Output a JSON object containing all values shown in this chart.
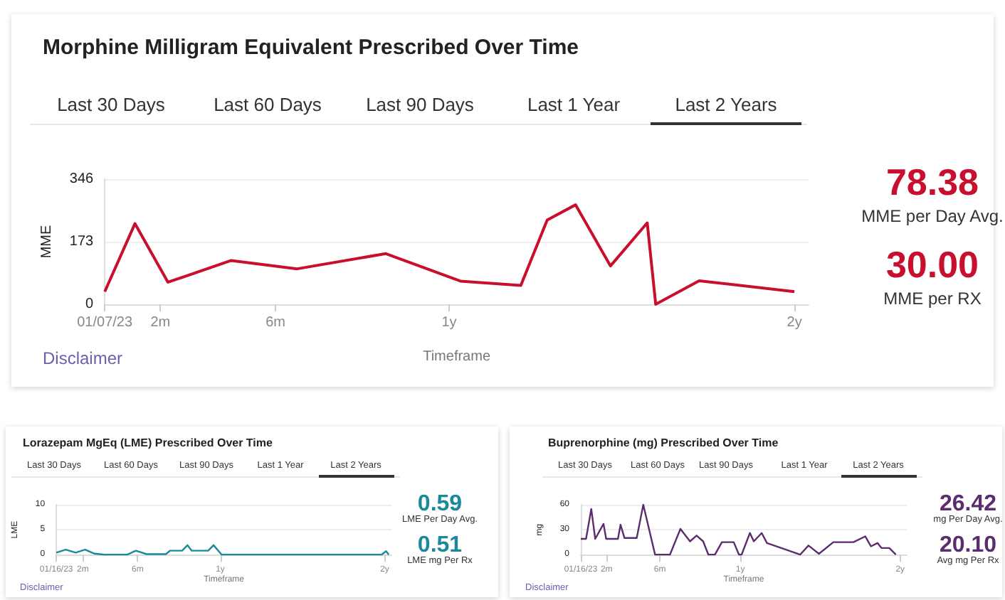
{
  "chart_data": [
    {
      "type": "line",
      "title": "Morphine Milligram Equivalent Prescribed Over Time",
      "xlabel": "Timeframe",
      "ylabel": "MME",
      "annotations": [
        "Last 30 Days",
        "Last 60 Days",
        "Last 90 Days",
        "Last 1 Year",
        "Last 2 Years",
        "78.38",
        "MME per Day Avg.",
        "30.00",
        "MME per RX",
        "Disclaimer"
      ],
      "series": [
        {
          "color": "#c8102e",
          "x": [
            "2023-01-07",
            "2023-02-08",
            "2023-03-15",
            "2023-05-21",
            "2023-07-30",
            "2023-11-01",
            "2024-01-19",
            "2024-03-23",
            "2024-04-20",
            "2024-05-20",
            "2024-06-26",
            "2024-08-04",
            "2024-08-13",
            "2024-09-28",
            "2025-01-07"
          ],
          "values": [
            35,
            223,
            61,
            121,
            98,
            140,
            64,
            52,
            233,
            275,
            106,
            225,
            0,
            65,
            35
          ]
        }
      ],
      "xlim": [
        "2023-01-07",
        "2025-01-22"
      ],
      "xticks": [
        {
          "value": "2023-01-07",
          "label": "01/07/23"
        },
        {
          "value": "2023-03-07",
          "label": "2m"
        },
        {
          "value": "2023-07-07",
          "label": "6m"
        },
        {
          "value": "2024-01-07",
          "label": "1y"
        },
        {
          "value": "2025-01-07",
          "label": "2y"
        }
      ],
      "ylim": [
        0,
        346
      ],
      "yticks": [
        0,
        173,
        346
      ],
      "grid": "y",
      "marker": "none"
    },
    {
      "type": "line",
      "title": "Lorazepam MgEq (LME) Prescribed Over Time",
      "xlabel": "Timeframe",
      "ylabel": "LME",
      "annotations": [
        "Last 30 Days",
        "Last 60 Days",
        "Last 90 Days",
        "Last 1 Year",
        "Last 2 Years",
        "0.59",
        "LME Per Day Avg.",
        "0.51",
        "LME mg Per Rx",
        "Disclaimer"
      ],
      "series": [
        {
          "color": "#1a8a9a",
          "x": [
            "2023-01-16",
            "2023-02-06",
            "2023-02-28",
            "2023-03-21",
            "2023-04-11",
            "2023-05-03",
            "2023-06-23",
            "2023-07-12",
            "2023-08-05",
            "2023-09-17",
            "2023-09-26",
            "2023-10-23",
            "2023-11-04",
            "2023-11-13",
            "2023-12-20",
            "2024-01-01",
            "2024-01-19",
            "2025-01-09",
            "2025-01-19",
            "2025-01-25"
          ],
          "values": [
            0.4,
            1,
            0.4,
            1,
            0.2,
            0,
            0,
            0.8,
            0.1,
            0.1,
            0.8,
            0.8,
            1.9,
            0.8,
            0.8,
            1.9,
            0,
            0,
            0.7,
            0
          ]
        }
      ],
      "xlim": [
        "2023-01-16",
        "2025-01-31"
      ],
      "xticks": [
        {
          "value": "2023-01-16",
          "label": "01/16/23"
        },
        {
          "value": "2023-03-16",
          "label": "2m"
        },
        {
          "value": "2023-07-16",
          "label": "6m"
        },
        {
          "value": "2024-01-16",
          "label": "1y"
        },
        {
          "value": "2025-01-16",
          "label": "2y"
        }
      ],
      "ylim": [
        0,
        10
      ],
      "yticks": [
        0,
        5,
        10
      ],
      "grid": "y",
      "marker": "none"
    },
    {
      "type": "line",
      "title": "Buprenorphine (mg) Prescribed Over Time",
      "xlabel": "Timeframe",
      "ylabel": "mg",
      "annotations": [
        "Last 30 Days",
        "Last 60 Days",
        "Last 90 Days",
        "Last 1 Year",
        "Last 2 Years",
        "26.42",
        "mg Per Day Avg.",
        "20.10",
        "Avg mg Per Rx",
        "Disclaimer"
      ],
      "series": [
        {
          "color": "#5b2d6e",
          "x": [
            "2023-01-16",
            "2023-01-28",
            "2023-02-09",
            "2023-02-18",
            "2023-03-09",
            "2023-03-15",
            "2023-04-11",
            "2023-04-17",
            "2023-04-26",
            "2023-05-24",
            "2023-06-08",
            "2023-07-05",
            "2023-08-08",
            "2023-09-01",
            "2023-09-23",
            "2023-10-08",
            "2023-10-23",
            "2023-11-04",
            "2023-11-19",
            "2023-12-05",
            "2024-01-01",
            "2024-01-13",
            "2024-01-19",
            "2024-02-07",
            "2024-02-16",
            "2024-03-05",
            "2024-03-17",
            "2024-06-01",
            "2024-06-20",
            "2024-07-14",
            "2024-08-16",
            "2024-10-01",
            "2024-10-28",
            "2024-11-10",
            "2024-11-25",
            "2024-12-04",
            "2024-12-22",
            "2025-01-06"
          ],
          "values": [
            19,
            19,
            55,
            19,
            37,
            19,
            19,
            36,
            20,
            20,
            60,
            0,
            0,
            31,
            16,
            23,
            16,
            0,
            0,
            15,
            15,
            0,
            0,
            26,
            16,
            26,
            14,
            0,
            11,
            1,
            15,
            15,
            22,
            10,
            14,
            8,
            8,
            0
          ]
        }
      ],
      "xlim": [
        "2023-01-16",
        "2025-01-31"
      ],
      "xticks": [
        {
          "value": "2023-01-16",
          "label": "01/16/23"
        },
        {
          "value": "2023-03-16",
          "label": "2m"
        },
        {
          "value": "2023-07-16",
          "label": "6m"
        },
        {
          "value": "2024-01-16",
          "label": "1y"
        },
        {
          "value": "2025-01-16",
          "label": "2y"
        }
      ],
      "ylim": [
        0,
        60
      ],
      "yticks": [
        0,
        30,
        60
      ],
      "grid": "y",
      "marker": "none"
    }
  ]
}
